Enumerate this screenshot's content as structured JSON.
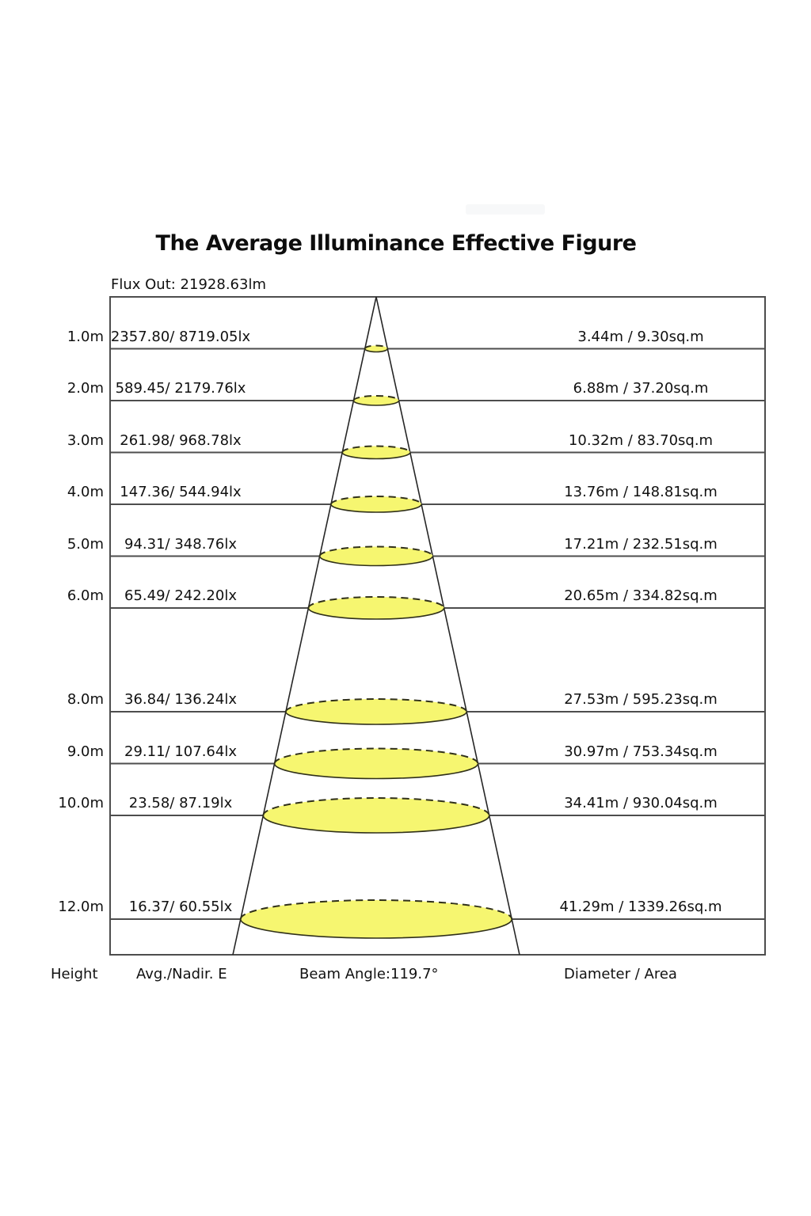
{
  "title": "The Average Illuminance Effective Figure",
  "flux_out_label": "Flux Out: 21928.63lm",
  "footer": {
    "height_label": "Height",
    "avg_nadir_label": "Avg./Nadir. E",
    "beam_angle_label": "Beam Angle:119.7°",
    "diameter_area_label": "Diameter / Area"
  },
  "colors": {
    "background": "#FFFFFF",
    "ellipse_fill": "#F6F670",
    "ellipse_stroke": "#30301A",
    "grid_line": "#4D4D4D",
    "cone_line": "#262626",
    "text": "#111111"
  },
  "chart_data": {
    "type": "table",
    "title": "The Average Illuminance Effective Figure",
    "flux_out_lm": 21928.63,
    "beam_angle_deg": 119.7,
    "columns": [
      "Height",
      "Avg./Nadir. E",
      "Diameter / Area"
    ],
    "rows": [
      {
        "height_m": 1.0,
        "height": "1.0m",
        "avg_nadir_e": "2357.80/ 8719.05lx",
        "diameter_area": "3.44m / 9.30sq.m"
      },
      {
        "height_m": 2.0,
        "height": "2.0m",
        "avg_nadir_e": "589.45/ 2179.76lx",
        "diameter_area": "6.88m / 37.20sq.m"
      },
      {
        "height_m": 3.0,
        "height": "3.0m",
        "avg_nadir_e": "261.98/ 968.78lx",
        "diameter_area": "10.32m / 83.70sq.m"
      },
      {
        "height_m": 4.0,
        "height": "4.0m",
        "avg_nadir_e": "147.36/ 544.94lx",
        "diameter_area": "13.76m / 148.81sq.m"
      },
      {
        "height_m": 5.0,
        "height": "5.0m",
        "avg_nadir_e": "94.31/ 348.76lx",
        "diameter_area": "17.21m / 232.51sq.m"
      },
      {
        "height_m": 6.0,
        "height": "6.0m",
        "avg_nadir_e": "65.49/ 242.20lx",
        "diameter_area": "20.65m / 334.82sq.m"
      },
      {
        "height_m": 8.0,
        "height": "8.0m",
        "avg_nadir_e": "36.84/ 136.24lx",
        "diameter_area": "27.53m / 595.23sq.m"
      },
      {
        "height_m": 9.0,
        "height": "9.0m",
        "avg_nadir_e": "29.11/ 107.64lx",
        "diameter_area": "30.97m / 753.34sq.m"
      },
      {
        "height_m": 10.0,
        "height": "10.0m",
        "avg_nadir_e": "23.58/ 87.19lx",
        "diameter_area": "34.41m / 930.04sq.m"
      },
      {
        "height_m": 12.0,
        "height": "12.0m",
        "avg_nadir_e": "16.37/ 60.55lx",
        "diameter_area": "41.29m / 1339.26sq.m"
      }
    ]
  }
}
